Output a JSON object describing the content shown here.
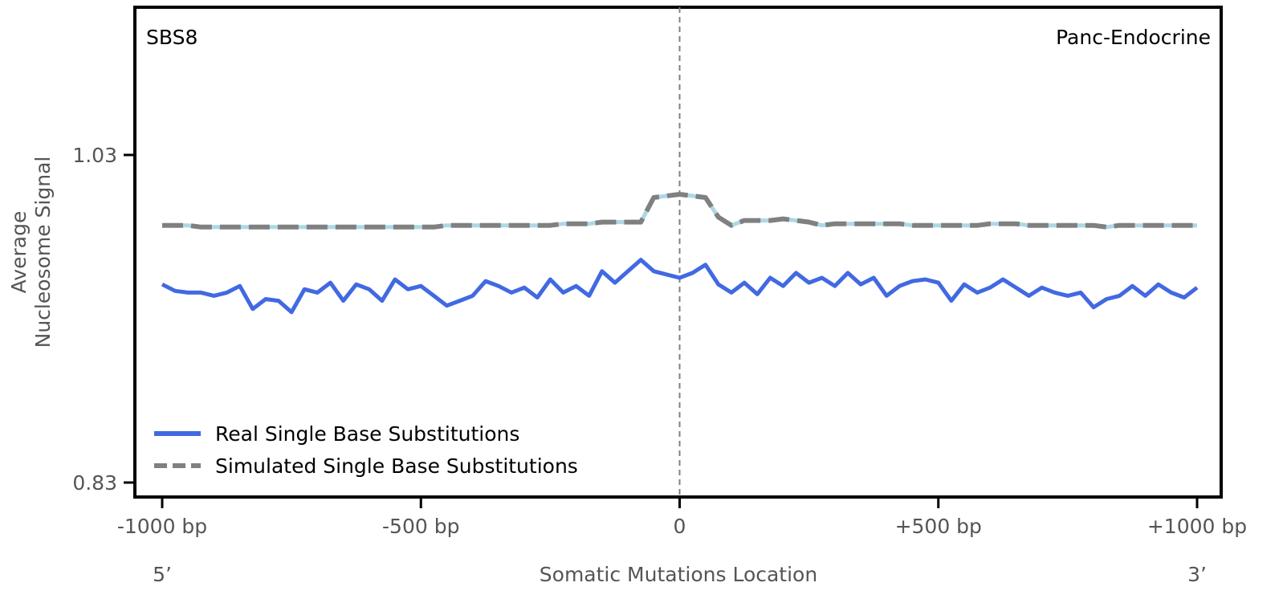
{
  "chart_data": {
    "type": "line",
    "title": "",
    "signature_label": "SBS8",
    "tissue_label": "Panc-Endocrine",
    "xlabel": "Somatic Mutations Location",
    "ylabel_lines": [
      "Average",
      "Nucleosome Signal"
    ],
    "end_labels": {
      "left": "5’",
      "right": "3’"
    },
    "xlim": [
      -1000,
      1000
    ],
    "ylim": [
      0.83,
      1.03
    ],
    "x_ticks": [
      {
        "value": -1000,
        "label": "-1000 bp"
      },
      {
        "value": -500,
        "label": "-500 bp"
      },
      {
        "value": 0,
        "label": "0"
      },
      {
        "value": 500,
        "label": "+500 bp"
      },
      {
        "value": 1000,
        "label": "+1000 bp"
      }
    ],
    "y_ticks": [
      {
        "value": 1.03,
        "label": "1.03"
      },
      {
        "value": 0.83,
        "label": "0.83"
      }
    ],
    "grid": false,
    "center_line": {
      "x": 0,
      "style": "dashed",
      "color": "#808080"
    },
    "legend_position": "bottom-left",
    "series": [
      {
        "name": "Real Single Base Substitutions",
        "color": "#4169e1",
        "style": "solid",
        "x": [
          -1000,
          -975,
          -950,
          -925,
          -900,
          -875,
          -850,
          -825,
          -800,
          -775,
          -750,
          -725,
          -700,
          -675,
          -650,
          -625,
          -600,
          -575,
          -550,
          -525,
          -500,
          -475,
          -450,
          -425,
          -400,
          -375,
          -350,
          -325,
          -300,
          -275,
          -250,
          -225,
          -200,
          -175,
          -150,
          -125,
          -100,
          -75,
          -50,
          -25,
          0,
          25,
          50,
          75,
          100,
          125,
          150,
          175,
          200,
          225,
          250,
          275,
          300,
          325,
          350,
          375,
          400,
          425,
          450,
          475,
          500,
          525,
          550,
          575,
          600,
          625,
          650,
          675,
          700,
          725,
          750,
          775,
          800,
          825,
          850,
          875,
          900,
          925,
          950,
          975,
          1000
        ],
        "y": [
          0.951,
          0.947,
          0.946,
          0.946,
          0.944,
          0.946,
          0.95,
          0.936,
          0.942,
          0.941,
          0.934,
          0.948,
          0.946,
          0.952,
          0.941,
          0.951,
          0.948,
          0.941,
          0.954,
          0.948,
          0.95,
          0.944,
          0.938,
          0.941,
          0.944,
          0.953,
          0.95,
          0.946,
          0.949,
          0.943,
          0.954,
          0.946,
          0.95,
          0.944,
          0.959,
          0.952,
          0.959,
          0.966,
          0.959,
          0.957,
          0.955,
          0.958,
          0.963,
          0.951,
          0.946,
          0.952,
          0.945,
          0.955,
          0.95,
          0.958,
          0.952,
          0.955,
          0.95,
          0.958,
          0.951,
          0.955,
          0.944,
          0.95,
          0.953,
          0.954,
          0.952,
          0.941,
          0.951,
          0.946,
          0.949,
          0.954,
          0.949,
          0.944,
          0.949,
          0.946,
          0.944,
          0.946,
          0.937,
          0.942,
          0.944,
          0.95,
          0.944,
          0.951,
          0.946,
          0.943,
          0.949
        ]
      },
      {
        "name": "Simulated Single Base Substitutions",
        "color": "#808080",
        "style": "dashed",
        "x": [
          -1000,
          -975,
          -950,
          -925,
          -900,
          -875,
          -850,
          -825,
          -800,
          -775,
          -750,
          -725,
          -700,
          -675,
          -650,
          -625,
          -600,
          -575,
          -550,
          -525,
          -500,
          -475,
          -450,
          -425,
          -400,
          -375,
          -350,
          -325,
          -300,
          -275,
          -250,
          -225,
          -200,
          -175,
          -150,
          -125,
          -100,
          -75,
          -50,
          -25,
          0,
          25,
          50,
          75,
          100,
          125,
          150,
          175,
          200,
          225,
          250,
          275,
          300,
          325,
          350,
          375,
          400,
          425,
          450,
          475,
          500,
          525,
          550,
          575,
          600,
          625,
          650,
          675,
          700,
          725,
          750,
          775,
          800,
          825,
          850,
          875,
          900,
          925,
          950,
          975,
          1000
        ],
        "y": [
          0.987,
          0.987,
          0.987,
          0.986,
          0.986,
          0.986,
          0.986,
          0.986,
          0.986,
          0.986,
          0.986,
          0.986,
          0.986,
          0.986,
          0.986,
          0.986,
          0.986,
          0.986,
          0.986,
          0.986,
          0.986,
          0.986,
          0.987,
          0.987,
          0.987,
          0.987,
          0.987,
          0.987,
          0.987,
          0.987,
          0.987,
          0.988,
          0.988,
          0.988,
          0.989,
          0.989,
          0.989,
          0.989,
          1.004,
          1.005,
          1.006,
          1.005,
          1.004,
          0.992,
          0.987,
          0.99,
          0.99,
          0.99,
          0.991,
          0.99,
          0.989,
          0.987,
          0.988,
          0.988,
          0.988,
          0.988,
          0.988,
          0.988,
          0.987,
          0.987,
          0.987,
          0.987,
          0.987,
          0.987,
          0.988,
          0.988,
          0.988,
          0.987,
          0.987,
          0.987,
          0.987,
          0.987,
          0.987,
          0.986,
          0.987,
          0.987,
          0.987,
          0.987,
          0.987,
          0.987,
          0.987
        ]
      }
    ]
  }
}
